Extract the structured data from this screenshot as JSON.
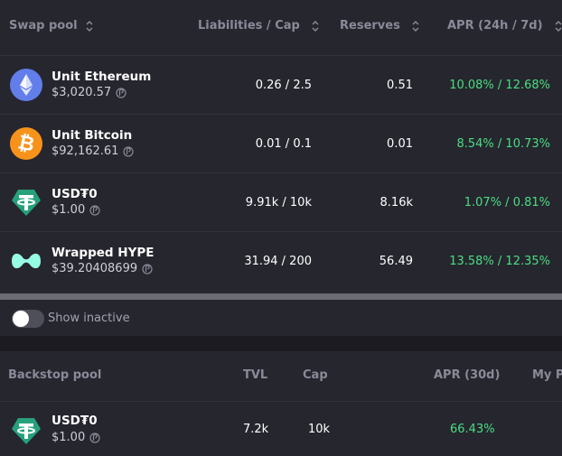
{
  "swap_pool": {
    "headers": {
      "pool": "Swap pool",
      "liabilities": "Liabilities / Cap",
      "reserves": "Reserves",
      "apr": "APR (24h / 7d)"
    },
    "rows": [
      {
        "name": "Unit Ethereum",
        "price": "$3,020.57",
        "liabilities": "0.26 / 2.5",
        "reserves": "0.51",
        "apr": "10.08% / 12.68%",
        "icon": "ethereum-icon"
      },
      {
        "name": "Unit Bitcoin",
        "price": "$92,162.61",
        "liabilities": "0.01 / 0.1",
        "reserves": "0.01",
        "apr": "8.54% / 10.73%",
        "icon": "bitcoin-icon"
      },
      {
        "name": "USD₮0",
        "price": "$1.00",
        "liabilities": "9.91k / 10k",
        "reserves": "8.16k",
        "apr": "1.07% / 0.81%",
        "icon": "tether-icon"
      },
      {
        "name": "Wrapped HYPE",
        "price": "$39.20408699",
        "liabilities": "31.94 / 200",
        "reserves": "56.49",
        "apr": "13.58% / 12.35%",
        "icon": "hype-icon"
      }
    ],
    "show_inactive_label": "Show inactive",
    "show_inactive_checked": false
  },
  "backstop_pool": {
    "headers": {
      "pool": "Backstop pool",
      "tvl": "TVL",
      "cap": "Cap",
      "apr": "APR (30d)",
      "my_position": "My Po"
    },
    "rows": [
      {
        "name": "USD₮0",
        "price": "$1.00",
        "tvl": "7.2k",
        "cap": "10k",
        "apr": "66.43%",
        "icon": "tether-icon"
      }
    ]
  },
  "colors": {
    "apr_green": "#4ade80",
    "ethereum": "#627eea",
    "bitcoin": "#f7931a",
    "tether": "#26a17b",
    "hype": "#97fce4"
  }
}
